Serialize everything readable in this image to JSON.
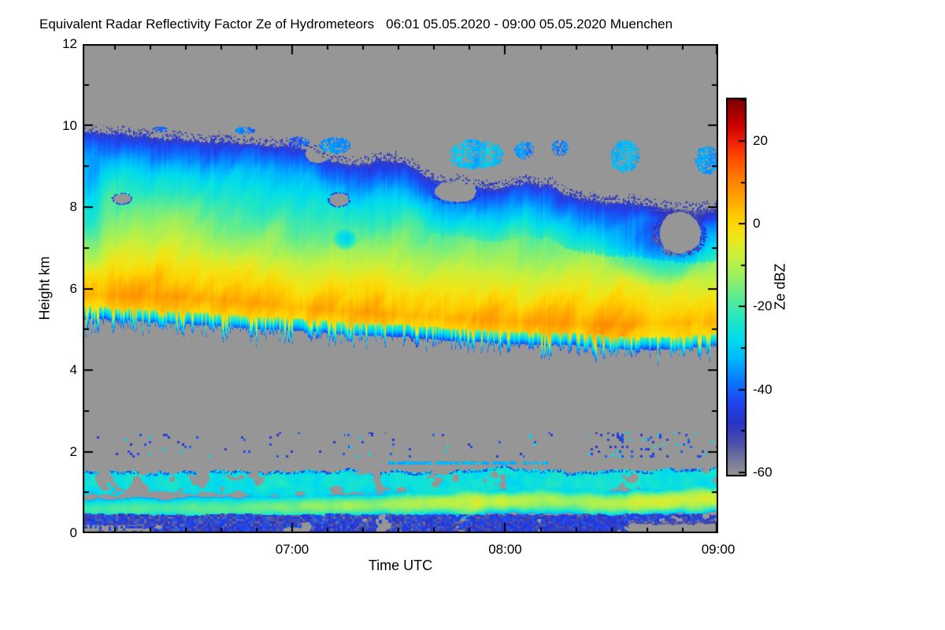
{
  "chart_data": {
    "type": "heatmap",
    "title": "Equivalent Radar Reflectivity Factor Ze of Hydrometeors",
    "period": "06:01 05.05.2020 - 09:00 05.05.2020 Muenchen",
    "x_axis": {
      "label": "Time UTC",
      "start_hour": 6.0167,
      "end_hour": 9.0,
      "minor_tick_minutes": 10,
      "major_ticks": [
        {
          "hour": 7,
          "label": "07:00"
        },
        {
          "hour": 8,
          "label": "08:00"
        },
        {
          "hour": 9,
          "label": "09:00"
        }
      ]
    },
    "y_axis": {
      "label": "Height km",
      "min": 0,
      "max": 12,
      "minor_tick_step": 1,
      "tick_labels": [
        {
          "km": 12,
          "label": "12"
        },
        {
          "km": 10,
          "label": "10"
        },
        {
          "km": 8,
          "label": "8"
        },
        {
          "km": 6,
          "label": "6"
        },
        {
          "km": 4,
          "label": "4"
        },
        {
          "km": 2,
          "label": "2"
        },
        {
          "km": 0,
          "label": "0"
        }
      ]
    },
    "colorbar": {
      "label": "Ze dBZ",
      "min": -61,
      "max": 30.5,
      "minor_tick_step": 10,
      "nan_color": "#969696",
      "tick_labels": [
        {
          "value": 20,
          "label": "20"
        },
        {
          "value": 0,
          "label": "0"
        },
        {
          "value": -20,
          "label": "-20"
        },
        {
          "value": -40,
          "label": "-40"
        },
        {
          "value": -60,
          "label": "-60"
        }
      ],
      "stops": [
        [
          -61,
          "#969696"
        ],
        [
          -60,
          "#8f9096"
        ],
        [
          -57,
          "#74789c"
        ],
        [
          -53,
          "#4c50a8"
        ],
        [
          -48,
          "#2a32c8"
        ],
        [
          -43,
          "#1e46f0"
        ],
        [
          -38,
          "#0a78ff"
        ],
        [
          -33,
          "#00b4ff"
        ],
        [
          -28,
          "#00dcec"
        ],
        [
          -23,
          "#23e6c3"
        ],
        [
          -18,
          "#5aeb96"
        ],
        [
          -13,
          "#96f064"
        ],
        [
          -8,
          "#c8f03c"
        ],
        [
          -3,
          "#f0e618"
        ],
        [
          1,
          "#ffd200"
        ],
        [
          6,
          "#ffa500"
        ],
        [
          11,
          "#ff7d00"
        ],
        [
          16,
          "#ff4b00"
        ],
        [
          20,
          "#f01e0a"
        ],
        [
          24,
          "#c80000"
        ],
        [
          30.5,
          "#780000"
        ]
      ]
    },
    "field": {
      "upper_cloud": {
        "top": [
          [
            6.02,
            9.82
          ],
          [
            6.2,
            9.78
          ],
          [
            6.45,
            9.65
          ],
          [
            6.7,
            9.58
          ],
          [
            6.95,
            9.5
          ],
          [
            7.08,
            9.42
          ],
          [
            7.18,
            9.12
          ],
          [
            7.3,
            9.02
          ],
          [
            7.42,
            9.15
          ],
          [
            7.55,
            9.05
          ],
          [
            7.62,
            8.75
          ],
          [
            7.72,
            8.6
          ],
          [
            7.82,
            8.55
          ],
          [
            7.95,
            8.42
          ],
          [
            8.1,
            8.6
          ],
          [
            8.22,
            8.5
          ],
          [
            8.32,
            8.22
          ],
          [
            8.45,
            8.12
          ],
          [
            8.6,
            8.08
          ],
          [
            8.75,
            7.98
          ],
          [
            8.9,
            7.92
          ],
          [
            9.0,
            7.98
          ]
        ],
        "base": [
          [
            6.02,
            5.25
          ],
          [
            6.3,
            5.2
          ],
          [
            6.6,
            5.1
          ],
          [
            6.9,
            5.0
          ],
          [
            7.2,
            4.9
          ],
          [
            7.5,
            4.82
          ],
          [
            7.8,
            4.72
          ],
          [
            8.1,
            4.62
          ],
          [
            8.35,
            4.58
          ],
          [
            8.6,
            4.5
          ],
          [
            8.8,
            4.52
          ],
          [
            9.0,
            4.6
          ]
        ],
        "core_height": [
          [
            6.02,
            5.85
          ],
          [
            6.5,
            5.8
          ],
          [
            7.0,
            5.55
          ],
          [
            7.5,
            5.35
          ],
          [
            8.0,
            5.2
          ],
          [
            8.5,
            5.1
          ],
          [
            9.0,
            5.2
          ]
        ],
        "core_dbz": [
          [
            6.02,
            4
          ],
          [
            6.2,
            7
          ],
          [
            6.45,
            6
          ],
          [
            6.7,
            5
          ],
          [
            7.0,
            4
          ],
          [
            7.3,
            5
          ],
          [
            7.55,
            6
          ],
          [
            7.8,
            5
          ],
          [
            8.05,
            6
          ],
          [
            8.3,
            7
          ],
          [
            8.55,
            7
          ],
          [
            8.75,
            4
          ],
          [
            9.0,
            3
          ]
        ]
      },
      "holes": [
        [
          7.12,
          9.3,
          0.055,
          0.22
        ],
        [
          7.77,
          8.38,
          0.1,
          0.26
        ],
        [
          7.22,
          8.18,
          0.045,
          0.16
        ],
        [
          8.82,
          7.35,
          0.1,
          0.5
        ],
        [
          6.2,
          8.2,
          0.04,
          0.12
        ]
      ],
      "patches": [
        [
          6.38,
          9.9,
          0.04,
          0.08,
          -40
        ],
        [
          6.78,
          9.88,
          0.05,
          0.09,
          -38
        ],
        [
          7.03,
          9.6,
          0.05,
          0.13,
          -40
        ],
        [
          7.2,
          9.52,
          0.08,
          0.2,
          -36
        ],
        [
          7.86,
          9.28,
          0.13,
          0.38,
          -32
        ],
        [
          8.09,
          9.4,
          0.05,
          0.22,
          -36
        ],
        [
          8.26,
          9.45,
          0.04,
          0.2,
          -37
        ],
        [
          8.56,
          9.25,
          0.07,
          0.42,
          -33
        ],
        [
          8.95,
          9.15,
          0.06,
          0.35,
          -35
        ]
      ],
      "cool_zones": [
        [
          8.72,
          6.9,
          0.27,
          0.85,
          -11
        ],
        [
          8.85,
          7.95,
          0.18,
          0.5,
          -8
        ],
        [
          7.25,
          7.2,
          0.06,
          0.28,
          -13
        ],
        [
          6.06,
          7.9,
          0.06,
          1.6,
          -7
        ]
      ],
      "speckle_band": {
        "h_min": 1.85,
        "h_max": 2.48
      },
      "thin_line": {
        "t0": 7.45,
        "t1": 8.2,
        "h": 1.72
      },
      "mid_layer": {
        "top": [
          [
            6.02,
            1.52
          ],
          [
            6.6,
            1.5
          ],
          [
            7.1,
            1.56
          ],
          [
            7.6,
            1.5
          ],
          [
            8.0,
            1.6
          ],
          [
            8.4,
            1.52
          ],
          [
            9.0,
            1.6
          ]
        ],
        "bottom": [
          [
            6.02,
            0.95
          ],
          [
            6.5,
            1.0
          ],
          [
            7.0,
            0.92
          ],
          [
            7.5,
            0.98
          ],
          [
            8.0,
            0.95
          ],
          [
            8.5,
            1.05
          ],
          [
            9.0,
            1.0
          ]
        ],
        "dbz": -26
      },
      "low_core": {
        "center": [
          [
            6.02,
            0.6
          ],
          [
            6.7,
            0.62
          ],
          [
            7.3,
            0.68
          ],
          [
            7.85,
            0.76
          ],
          [
            8.2,
            0.8
          ],
          [
            8.5,
            0.72
          ],
          [
            8.75,
            0.78
          ],
          [
            9.0,
            0.85
          ]
        ],
        "dbz": [
          [
            6.02,
            -21
          ],
          [
            6.6,
            -18
          ],
          [
            7.0,
            -15
          ],
          [
            7.3,
            -13
          ],
          [
            7.6,
            -11
          ],
          [
            7.85,
            -7
          ],
          [
            8.05,
            -10
          ],
          [
            8.3,
            -12
          ],
          [
            8.5,
            -9
          ],
          [
            8.65,
            -6
          ],
          [
            8.85,
            -8
          ],
          [
            9.0,
            -7
          ]
        ]
      },
      "bottom_layer": {
        "h_top": 0.46,
        "dbz": -40,
        "dense_t": [
          7.88,
          8.56
        ],
        "right_gap_t": 8.58,
        "left_gap_t": 6.3
      }
    }
  }
}
